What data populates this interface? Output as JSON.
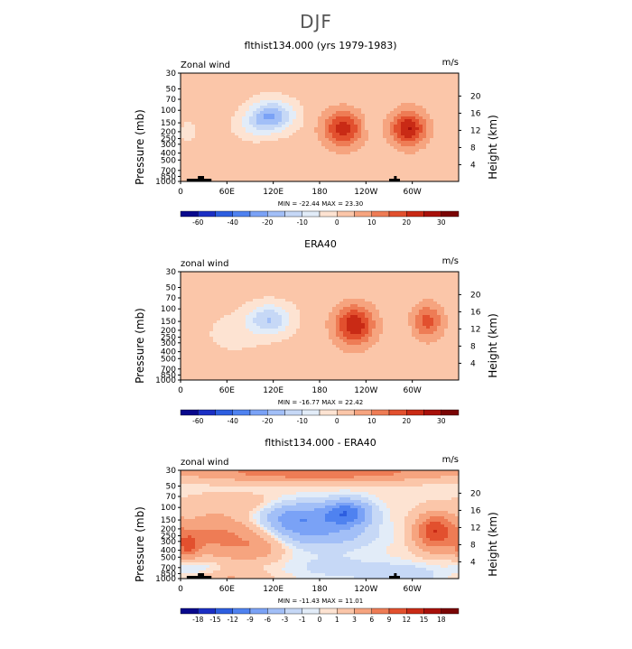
{
  "page": {
    "title": "DJF"
  },
  "palette_main": [
    "#08088c",
    "#1b2fc4",
    "#2d5ee0",
    "#4f82f0",
    "#7aa2f6",
    "#a2bff7",
    "#c6d8f6",
    "#e2ecf8",
    "#fde3d2",
    "#fbc6a9",
    "#f6a47f",
    "#ee7c55",
    "#e2502e",
    "#c92a15",
    "#a8100a",
    "#7a0505"
  ],
  "palette_diff": [
    "#08088c",
    "#1b2fc4",
    "#2d5ee0",
    "#4f82f0",
    "#7aa2f6",
    "#a2bff7",
    "#c6d8f6",
    "#e2ecf8",
    "#fde3d2",
    "#fbc6a9",
    "#f6a47f",
    "#ee7c55",
    "#e2502e",
    "#c92a15",
    "#a8100a",
    "#7a0505"
  ],
  "chart_data": [
    {
      "type": "heatmap",
      "title": "flthist134.000 (yrs 1979-1983)",
      "left_label": "Zonal wind",
      "right_label": "m/s",
      "xlabel": "",
      "ylabel": "Pressure (mb)",
      "ylabel_right": "Height (km)",
      "xticks": [
        "0",
        "60E",
        "120E",
        "180",
        "120W",
        "60W"
      ],
      "xtick_lons": [
        0,
        60,
        120,
        180,
        240,
        300
      ],
      "xlim": [
        0,
        360
      ],
      "yticks": [
        "30",
        "50",
        "70",
        "100",
        "150",
        "200",
        "250",
        "300",
        "400",
        "500",
        "700",
        "850",
        "1000"
      ],
      "yticks_right": [
        "4",
        "8",
        "12",
        "16",
        "20"
      ],
      "ylim": [
        1000,
        30
      ],
      "stats": "MIN = -22.44   MAX =  23.30",
      "colorbar_labels": [
        "-60",
        "-40",
        "-20",
        "-10",
        "0",
        "10",
        "20",
        "30"
      ],
      "levels": [
        -70,
        -60,
        -50,
        -40,
        -30,
        -20,
        -15,
        -10,
        -5,
        0,
        5,
        10,
        15,
        20,
        25,
        30,
        35
      ],
      "background_value": 2,
      "features": [
        {
          "lon": 118,
          "p": 120,
          "value": -22.4,
          "sx": 20,
          "sy": 0.35
        },
        {
          "lon": 92,
          "p": 170,
          "value": -6,
          "sx": 16,
          "sy": 0.3
        },
        {
          "lon": 210,
          "p": 180,
          "value": 21,
          "sx": 18,
          "sy": 0.4
        },
        {
          "lon": 295,
          "p": 180,
          "value": 23.3,
          "sx": 16,
          "sy": 0.4
        },
        {
          "lon": 245,
          "p": 160,
          "value": -4,
          "sx": 6,
          "sy": 0.2
        },
        {
          "lon": 10,
          "p": 200,
          "value": -3,
          "sx": 10,
          "sy": 0.35
        },
        {
          "lon": 150,
          "p": 700,
          "value": 3,
          "sx": 60,
          "sy": 0.35
        },
        {
          "lon": 330,
          "p": 1000,
          "value": 2,
          "sx": 30,
          "sy": 0.25
        },
        {
          "lon": 180,
          "p": 30,
          "value": 1,
          "sx": 80,
          "sy": 0.2
        }
      ],
      "terrain": [
        [
          8,
          40
        ],
        [
          270,
          284
        ]
      ]
    },
    {
      "type": "heatmap",
      "title": "ERA40",
      "left_label": "zonal wind",
      "right_label": "m/s",
      "xlabel": "",
      "ylabel": "Pressure (mb)",
      "ylabel_right": "Height (km)",
      "xticks": [
        "0",
        "60E",
        "120E",
        "180",
        "120W",
        "60W"
      ],
      "xtick_lons": [
        0,
        60,
        120,
        180,
        240,
        300
      ],
      "xlim": [
        0,
        360
      ],
      "yticks": [
        "30",
        "50",
        "70",
        "100",
        "150",
        "200",
        "250",
        "300",
        "400",
        "500",
        "700",
        "850",
        "1000"
      ],
      "yticks_right": [
        "4",
        "8",
        "12",
        "16",
        "20"
      ],
      "ylim": [
        1000,
        30
      ],
      "stats": "MIN = -16.77   MAX =  22.42",
      "colorbar_labels": [
        "-60",
        "-40",
        "-20",
        "-10",
        "0",
        "10",
        "20",
        "30"
      ],
      "levels": [
        -70,
        -60,
        -50,
        -40,
        -30,
        -20,
        -15,
        -10,
        -5,
        0,
        5,
        10,
        15,
        20,
        25,
        30,
        35
      ],
      "background_value": 2,
      "features": [
        {
          "lon": 115,
          "p": 140,
          "value": -16.8,
          "sx": 20,
          "sy": 0.35
        },
        {
          "lon": 70,
          "p": 220,
          "value": -4,
          "sx": 26,
          "sy": 0.45
        },
        {
          "lon": 225,
          "p": 170,
          "value": 22.4,
          "sx": 18,
          "sy": 0.45
        },
        {
          "lon": 320,
          "p": 150,
          "value": 15,
          "sx": 14,
          "sy": 0.4
        },
        {
          "lon": 290,
          "p": 200,
          "value": -2,
          "sx": 6,
          "sy": 0.2
        },
        {
          "lon": 150,
          "p": 750,
          "value": 1.5,
          "sx": 60,
          "sy": 0.3
        },
        {
          "lon": 180,
          "p": 30,
          "value": -2,
          "sx": 60,
          "sy": 0.15
        }
      ],
      "terrain": []
    },
    {
      "type": "heatmap",
      "title": "flthist134.000 - ERA40",
      "left_label": "zonal wind",
      "right_label": "m/s",
      "xlabel": "",
      "ylabel": "Pressure (mb)",
      "ylabel_right": "Height (km)",
      "xticks": [
        "0",
        "60E",
        "120E",
        "180",
        "120W",
        "60W"
      ],
      "xtick_lons": [
        0,
        60,
        120,
        180,
        240,
        300
      ],
      "xlim": [
        0,
        360
      ],
      "yticks": [
        "30",
        "50",
        "70",
        "100",
        "150",
        "200",
        "250",
        "300",
        "400",
        "500",
        "700",
        "850",
        "1000"
      ],
      "yticks_right": [
        "4",
        "8",
        "12",
        "16",
        "20"
      ],
      "ylim": [
        1000,
        30
      ],
      "stats": "MIN = -11.43   MAX =  11.01",
      "colorbar_labels": [
        "-18",
        "-15",
        "-12",
        "-9",
        "-6",
        "-3",
        "-1",
        "0",
        "1",
        "3",
        "6",
        "9",
        "12",
        "15",
        "18"
      ],
      "levels": [
        -21,
        -18,
        -15,
        -12,
        -9,
        -6,
        -3,
        -1,
        0,
        1,
        3,
        6,
        9,
        12,
        15,
        18,
        21
      ],
      "background_value": 0.5,
      "features": [
        {
          "lon": 180,
          "p": 32,
          "value": 8,
          "sx": 120,
          "sy": 0.2
        },
        {
          "lon": 215,
          "p": 120,
          "value": -11.4,
          "sx": 22,
          "sy": 0.3
        },
        {
          "lon": 150,
          "p": 140,
          "value": -8,
          "sx": 30,
          "sy": 0.35
        },
        {
          "lon": 185,
          "p": 240,
          "value": -5,
          "sx": 45,
          "sy": 0.35
        },
        {
          "lon": 330,
          "p": 220,
          "value": 11,
          "sx": 18,
          "sy": 0.4
        },
        {
          "lon": 45,
          "p": 250,
          "value": 6,
          "sx": 35,
          "sy": 0.5
        },
        {
          "lon": 100,
          "p": 350,
          "value": 4,
          "sx": 25,
          "sy": 0.35
        },
        {
          "lon": 10,
          "p": 350,
          "value": 7,
          "sx": 10,
          "sy": 0.3
        },
        {
          "lon": 70,
          "p": 85,
          "value": 2,
          "sx": 40,
          "sy": 0.2
        },
        {
          "lon": 290,
          "p": 900,
          "value": -3,
          "sx": 35,
          "sy": 0.25
        },
        {
          "lon": 200,
          "p": 700,
          "value": -2,
          "sx": 50,
          "sy": 0.3
        },
        {
          "lon": 20,
          "p": 700,
          "value": -2,
          "sx": 20,
          "sy": 0.25
        },
        {
          "lon": 60,
          "p": 950,
          "value": 2.5,
          "sx": 40,
          "sy": 0.15
        }
      ],
      "terrain": [
        [
          8,
          40
        ],
        [
          270,
          284
        ]
      ]
    }
  ]
}
